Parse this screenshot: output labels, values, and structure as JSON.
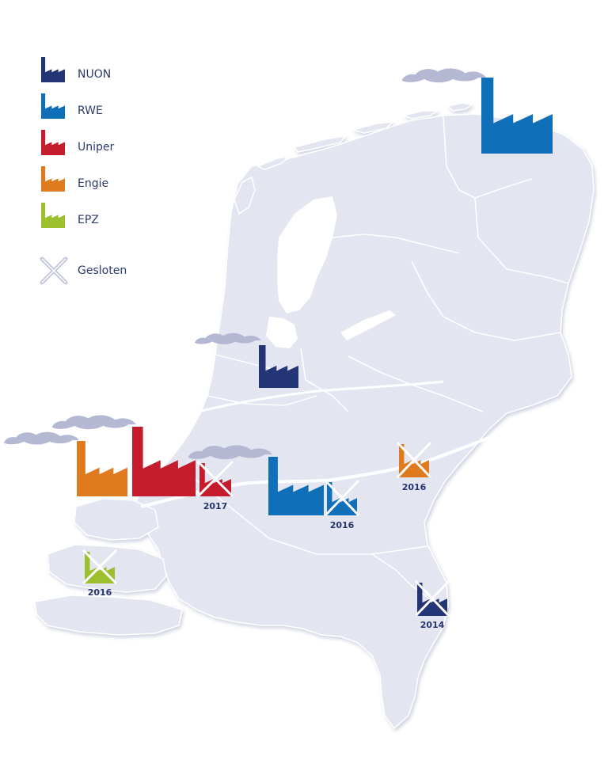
{
  "colors": {
    "land": "#e3e5f1",
    "border": "#ffffff",
    "smoke": "#b4b8d3",
    "cross": "#ffffff",
    "closed_cross": "#c3c6dc"
  },
  "legend": [
    {
      "key": "nuon",
      "label": "NUON",
      "color": "#233574"
    },
    {
      "key": "rwe",
      "label": "RWE",
      "color": "#0f6fb9"
    },
    {
      "key": "uniper",
      "label": "Uniper",
      "color": "#c41c2c"
    },
    {
      "key": "engie",
      "label": "Engie",
      "color": "#e07a1f"
    },
    {
      "key": "epz",
      "label": "EPZ",
      "color": "#9cbf2e"
    }
  ],
  "legend_closed": {
    "label": "Gesloten"
  },
  "plants": [
    {
      "id": "eemshaven-rwe",
      "company": "rwe",
      "closed": false,
      "icon": "factory-icon"
    },
    {
      "id": "hemweg-nuon",
      "company": "nuon",
      "closed": false,
      "icon": "factory-icon"
    },
    {
      "id": "maasvlakte-engie",
      "company": "engie",
      "closed": false,
      "icon": "factory-icon"
    },
    {
      "id": "maasvlakte-uniper",
      "company": "uniper",
      "closed": false,
      "icon": "factory-icon"
    },
    {
      "id": "rotterdam-uniper-closed",
      "company": "uniper",
      "closed": true,
      "year": "2017",
      "icon": "closed-factory-icon"
    },
    {
      "id": "amer-rwe",
      "company": "rwe",
      "closed": false,
      "icon": "factory-icon"
    },
    {
      "id": "geertruidenberg-rwe-closed",
      "company": "rwe",
      "closed": true,
      "year": "2016",
      "icon": "closed-factory-icon"
    },
    {
      "id": "nijmegen-engie-closed",
      "company": "engie",
      "closed": true,
      "year": "2016",
      "icon": "closed-factory-icon"
    },
    {
      "id": "borssele-epz-closed",
      "company": "epz",
      "closed": true,
      "year": "2016",
      "icon": "closed-factory-icon"
    },
    {
      "id": "buggenum-nuon-closed",
      "company": "nuon",
      "closed": true,
      "year": "2014",
      "icon": "closed-factory-icon"
    }
  ]
}
